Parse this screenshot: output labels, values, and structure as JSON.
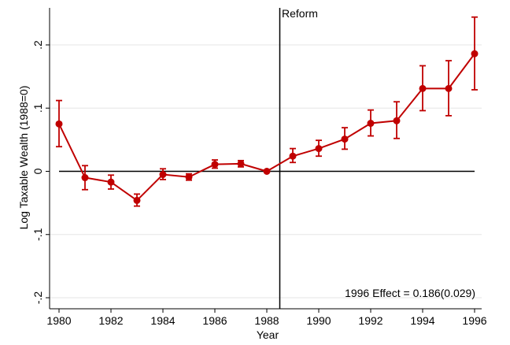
{
  "chart_data": {
    "type": "line",
    "title": "",
    "xlabel": "Year",
    "ylabel": "Log Taxable Wealth (1988=0)",
    "xlim": [
      1980,
      1996
    ],
    "ylim": [
      -0.2,
      0.25
    ],
    "x_ticks": [
      "1980",
      "1982",
      "1984",
      "1986",
      "1988",
      "1990",
      "1992",
      "1994",
      "1996"
    ],
    "y_ticks": [
      {
        "value": 0.2,
        "label": ".2"
      },
      {
        "value": 0.1,
        "label": ".1"
      },
      {
        "value": 0,
        "label": "0"
      },
      {
        "value": -0.1,
        "label": "-.1"
      },
      {
        "value": -0.2,
        "label": "-.2"
      }
    ],
    "grid": "horizontal light gray",
    "series": [
      {
        "color": "#c00000",
        "x": [
          1980,
          1981,
          1982,
          1983,
          1984,
          1985,
          1986,
          1987,
          1988,
          1989,
          1990,
          1991,
          1992,
          1993,
          1994,
          1995,
          1996
        ],
        "values": [
          0.075,
          -0.01,
          -0.017,
          -0.046,
          -0.005,
          -0.009,
          0.011,
          0.012,
          0.0,
          0.024,
          0.036,
          0.051,
          0.076,
          0.08,
          0.131,
          0.131,
          0.186
        ],
        "ci_low": [
          0.039,
          -0.029,
          -0.028,
          -0.055,
          -0.013,
          -0.014,
          0.005,
          0.007,
          0.0,
          0.014,
          0.024,
          0.035,
          0.056,
          0.052,
          0.096,
          0.088,
          0.129
        ],
        "ci_high": [
          0.112,
          0.009,
          -0.006,
          -0.036,
          0.004,
          -0.004,
          0.018,
          0.017,
          0.0,
          0.036,
          0.049,
          0.069,
          0.097,
          0.11,
          0.167,
          0.175,
          0.244
        ]
      }
    ],
    "reference_lines": {
      "vertical_x": 1988.5,
      "vertical_label": "Reform",
      "horizontal_y": 0
    },
    "annotation": "1996 Effect = 0.186(0.029)"
  }
}
